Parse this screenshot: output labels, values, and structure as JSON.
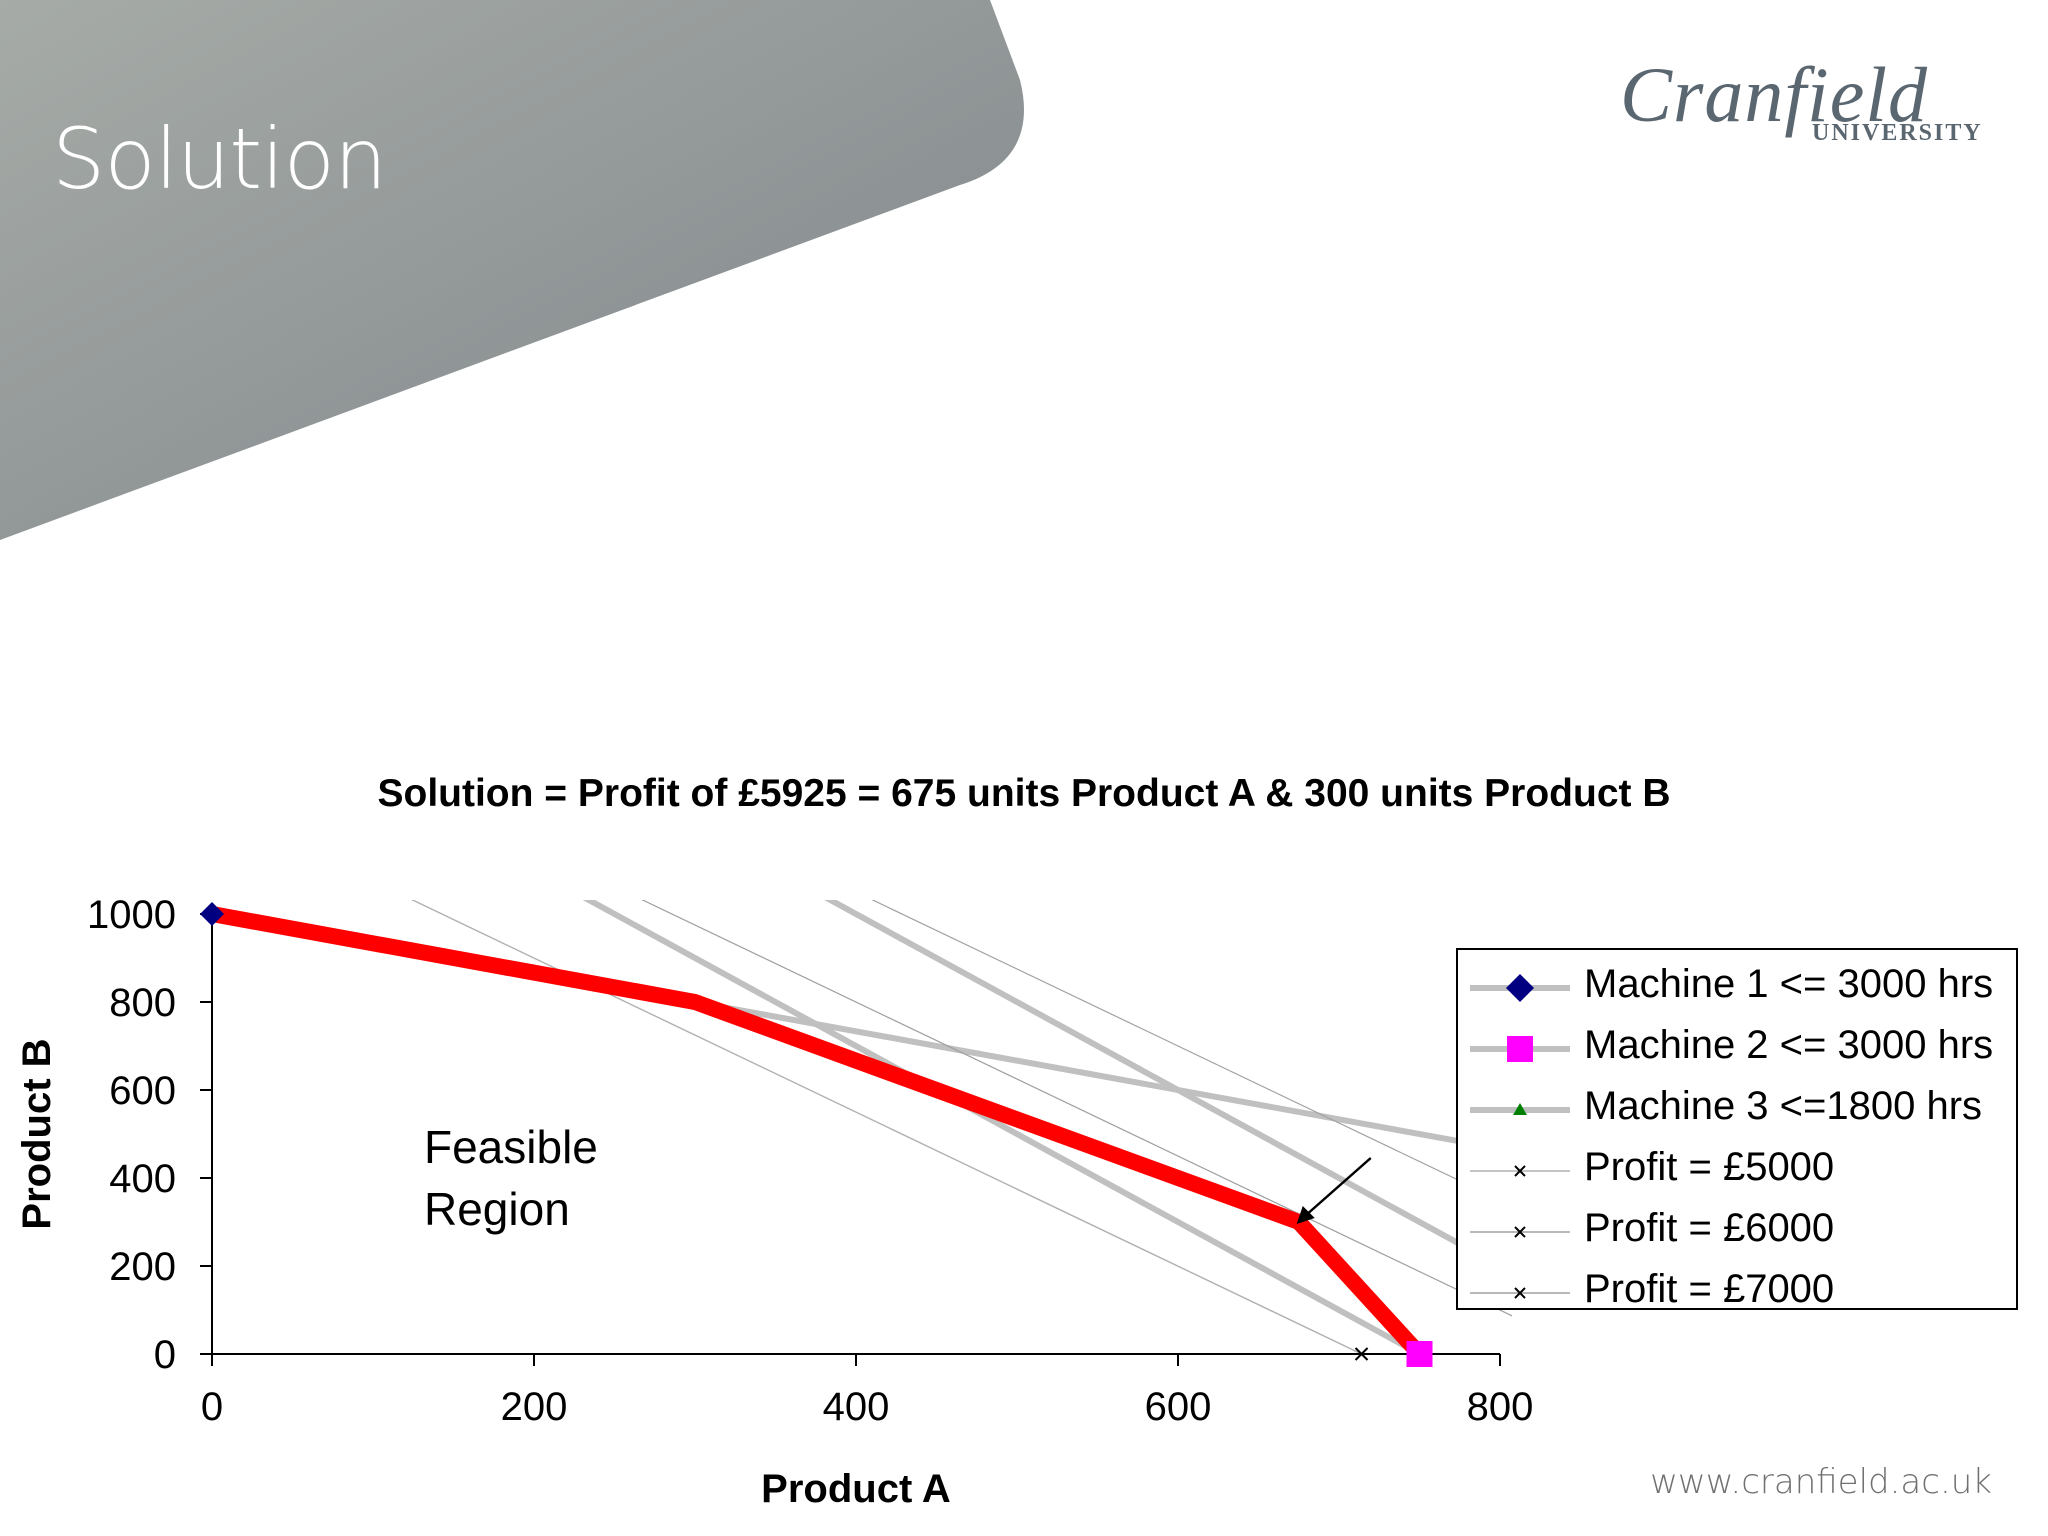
{
  "slide": {
    "title": "Solution",
    "logo_name": "Cranfield",
    "logo_sub": "UNIVERSITY",
    "url": "www.cranfield.ac.uk",
    "banner_color_light": "#a6aba7",
    "banner_color_dark": "#7f858a"
  },
  "annotation": {
    "line1": "Feasible",
    "line2": "Region"
  },
  "chart_data": {
    "type": "line",
    "title": "Solution = Profit of £5925 = 675 units Product A & 300 units Product B",
    "xlabel": "Product A",
    "ylabel": "Product B",
    "xlim": [
      0,
      800
    ],
    "ylim": [
      0,
      1000
    ],
    "x_ticks": [
      "0",
      "200",
      "400",
      "600",
      "800"
    ],
    "y_ticks": [
      "0",
      "200",
      "400",
      "600",
      "800",
      "1000"
    ],
    "grid": false,
    "legend_position": "right",
    "series": [
      {
        "name": "Machine 1 <= 3000 hrs",
        "color": "#c0c0c0",
        "marker": "diamond",
        "marker_color": "#000080",
        "points": [
          [
            0,
            1000
          ],
          [
            300,
            800
          ],
          [
            1500,
            0
          ]
        ]
      },
      {
        "name": "Machine 2 <= 3000 hrs",
        "color": "#c0c0c0",
        "marker": "square",
        "marker_color": "#ff00ff",
        "points": [
          [
            750,
            0
          ],
          [
            0,
            1500
          ]
        ]
      },
      {
        "name": "Machine 3 <=1800 hrs",
        "color": "#c0c0c0",
        "marker": "triangle",
        "marker_color": "#008000",
        "points": [
          [
            0,
            1800
          ],
          [
            900,
            0
          ]
        ]
      },
      {
        "name": "Profit = £5000",
        "color": "#b0b0b0",
        "marker": "x",
        "marker_color": "#000000",
        "points": [
          [
            0,
            1250
          ],
          [
            714,
            0
          ]
        ]
      },
      {
        "name": "Profit = £6000",
        "color": "#a0a0a0",
        "marker": "x",
        "marker_color": "#000000",
        "points": [
          [
            0,
            1500
          ],
          [
            857,
            0
          ]
        ]
      },
      {
        "name": "Profit = £7000",
        "color": "#a0a0a0",
        "marker": "x",
        "marker_color": "#000000",
        "points": [
          [
            0,
            1750
          ],
          [
            1000,
            0
          ]
        ]
      }
    ],
    "feasible_region": {
      "color": "#ff0000",
      "points": [
        [
          0,
          1000
        ],
        [
          300,
          800
        ],
        [
          675,
          300
        ],
        [
          750,
          0
        ]
      ]
    },
    "optimum": {
      "x": 675,
      "y": 300
    }
  }
}
